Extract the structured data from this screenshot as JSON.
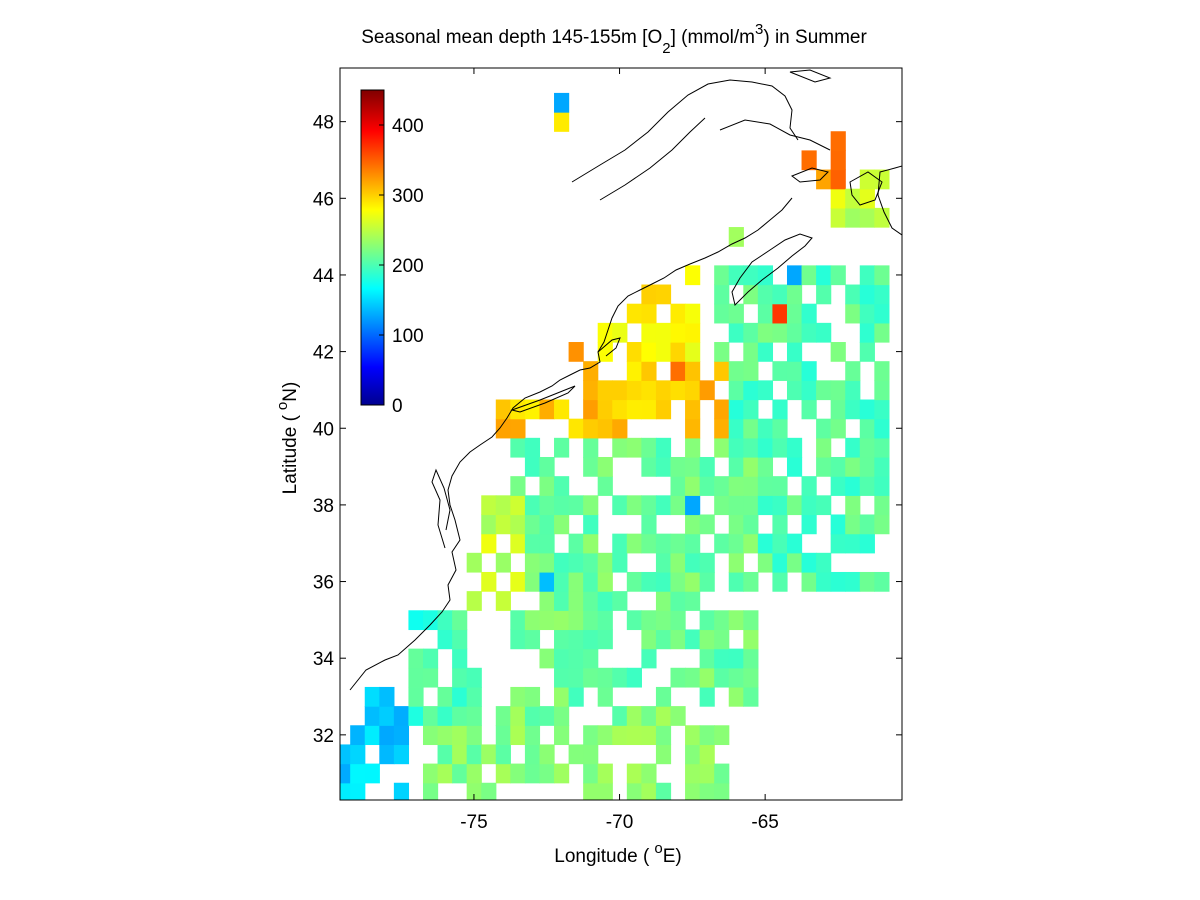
{
  "figure": {
    "title": {
      "main": "Seasonal mean depth 145-155m [O",
      "subscript": "2",
      "units_open": "] (mmol/m",
      "superscript": "3",
      "tail": ") in  Summer"
    },
    "xlabel": {
      "prefix": "Longitude (",
      "superscript": "o",
      "suffix": "E)"
    },
    "ylabel": {
      "prefix": "Latitude (",
      "superscript": "o",
      "suffix": "N)"
    }
  },
  "chart_data": {
    "type": "heatmap",
    "variable": "O2",
    "units": "mmol/m3",
    "season": "Summer",
    "depth_range_m": [
      145,
      155
    ],
    "xlim": [
      -79.6,
      -60.3
    ],
    "ylim": [
      30.3,
      49.4
    ],
    "xticks": [
      -75,
      -70,
      -65
    ],
    "xtick_labels": [
      "-75",
      "-70",
      "-65"
    ],
    "yticks": [
      32,
      34,
      36,
      38,
      40,
      42,
      44,
      46,
      48
    ],
    "ytick_labels": [
      "32",
      "34",
      "36",
      "38",
      "40",
      "42",
      "44",
      "46",
      "48"
    ],
    "grid": false,
    "cell_size_deg": 0.5,
    "colormap": "jet",
    "colorbar": {
      "range": [
        0,
        450
      ],
      "ticks": [
        0,
        100,
        200,
        300,
        400
      ],
      "tick_labels": [
        "0",
        "100",
        "200",
        "300",
        "400"
      ],
      "placement": "inside-top-left",
      "stops": [
        "#00008f",
        "#0000ff",
        "#00ffff",
        "#ffff00",
        "#ff0000",
        "#800000"
      ]
    },
    "regions": [
      {
        "lon": [
          -79.5,
          -77.0
        ],
        "lat": [
          30.5,
          33.5
        ],
        "value": 150
      },
      {
        "lon": [
          -77.0,
          -74.5
        ],
        "lat": [
          32.5,
          35.5
        ],
        "value": 195
      },
      {
        "lon": [
          -75.5,
          -73.0
        ],
        "lat": [
          35.5,
          38.5
        ],
        "value": 255
      },
      {
        "lon": [
          -73.5,
          -65.0
        ],
        "lat": [
          33.0,
          40.0
        ],
        "value": 215
      },
      {
        "lon": [
          -74.0,
          -66.0
        ],
        "lat": [
          40.0,
          42.0
        ],
        "value": 305
      },
      {
        "lon": [
          -71.5,
          -67.0
        ],
        "lat": [
          42.0,
          44.5
        ],
        "value": 285
      },
      {
        "lon": [
          -66.5,
          -60.5
        ],
        "lat": [
          36.0,
          44.5
        ],
        "value": 205
      },
      {
        "lon": [
          -63.5,
          -62.0
        ],
        "lat": [
          46.5,
          48.5
        ],
        "value": 340
      },
      {
        "lon": [
          -62.5,
          -60.5
        ],
        "lat": [
          45.5,
          47.0
        ],
        "value": 255
      },
      {
        "lon": [
          -76.5,
          -66.0
        ],
        "lat": [
          30.5,
          33.0
        ],
        "value": 225
      }
    ],
    "highlights": [
      {
        "lon": -71.5,
        "lat": 42.0,
        "value": 330
      },
      {
        "lon": -64.5,
        "lat": 43.0,
        "value": 370
      },
      {
        "lon": -68.0,
        "lat": 41.5,
        "value": 345
      },
      {
        "lon": -72.5,
        "lat": 36.0,
        "value": 140
      },
      {
        "lon": -67.5,
        "lat": 38.0,
        "value": 130
      },
      {
        "lon": -64.0,
        "lat": 44.0,
        "value": 130
      },
      {
        "lon": -72.0,
        "lat": 48.5,
        "value": 130
      },
      {
        "lon": -72.0,
        "lat": 48.0,
        "value": 290
      },
      {
        "lon": -66.0,
        "lat": 45.0,
        "value": 240
      }
    ]
  }
}
